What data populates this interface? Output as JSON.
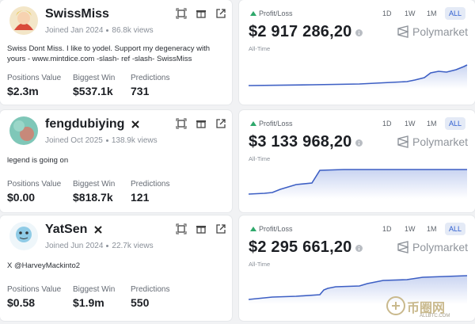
{
  "profiles": [
    {
      "name": "SwissMiss",
      "joined": "Joined Jan 2024",
      "views": "86.8k views",
      "bio": "Swiss Dont Miss. I like to yodel. Support my degeneracy with yours - www.mintdice.com -slash- ref -slash- SwissMiss",
      "stats": [
        {
          "label": "Positions Value",
          "value": "$2.3m"
        },
        {
          "label": "Biggest Win",
          "value": "$537.1k"
        },
        {
          "label": "Predictions",
          "value": "731"
        }
      ],
      "pnl": {
        "label": "Profit/Loss",
        "amount": "$2 917 286,20",
        "brand": "Polymarket",
        "period": "All-Time",
        "ranges": [
          "1D",
          "1W",
          "1M",
          "ALL"
        ]
      }
    },
    {
      "name": "fengdubiying",
      "joined": "Joined Oct 2025",
      "views": "138.9k views",
      "bio": "legend is going on",
      "stats": [
        {
          "label": "Positions Value",
          "value": "$0.00"
        },
        {
          "label": "Biggest Win",
          "value": "$818.7k"
        },
        {
          "label": "Predictions",
          "value": "121"
        }
      ],
      "pnl": {
        "label": "Profit/Loss",
        "amount": "$3 133 968,20",
        "brand": "Polymarket",
        "period": "All-Time",
        "ranges": [
          "1D",
          "1W",
          "1M",
          "ALL"
        ]
      }
    },
    {
      "name": "YatSen",
      "joined": "Joined Jun 2024",
      "views": "22.7k views",
      "bio": "X @HarveyMackinto2",
      "stats": [
        {
          "label": "Positions Value",
          "value": "$0.58"
        },
        {
          "label": "Biggest Win",
          "value": "$1.9m"
        },
        {
          "label": "Predictions",
          "value": "550"
        }
      ],
      "pnl": {
        "label": "Profit/Loss",
        "amount": "$2 295 661,20",
        "brand": "Polymarket",
        "period": "All-Time",
        "ranges": [
          "1D",
          "1W",
          "1M",
          "ALL"
        ]
      }
    }
  ],
  "watermark": {
    "title": "币圈网",
    "url": "ALLBTC.COM"
  }
}
